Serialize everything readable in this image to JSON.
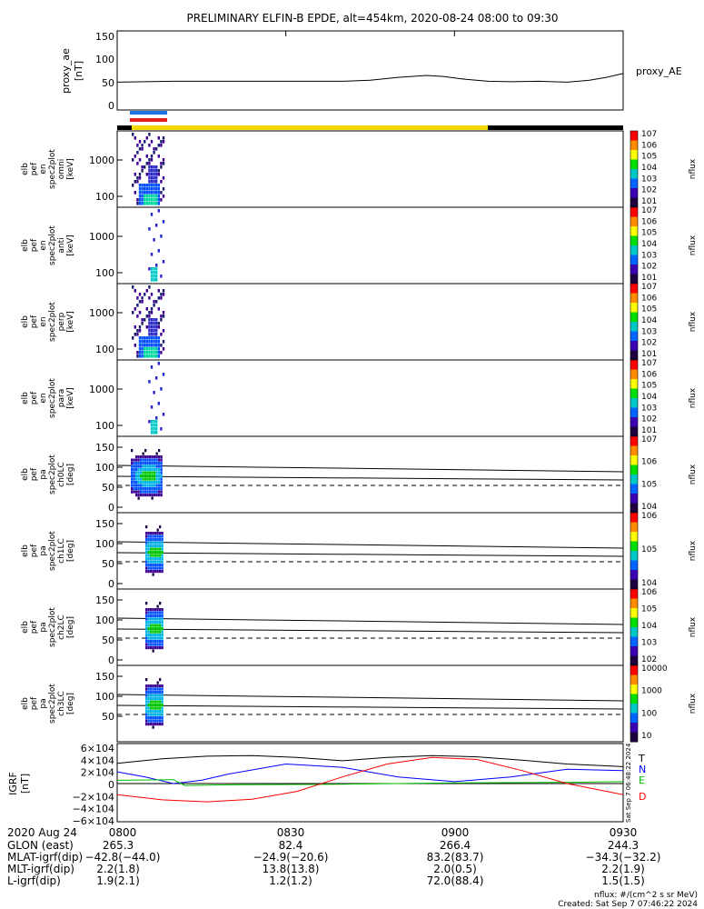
{
  "title": "PRELIMINARY ELFIN-B EPDE, alt=454km, 2020-08-24 08:00 to 09:30",
  "chart_data": {
    "type": "line",
    "panels": [
      {
        "name": "proxy_ae",
        "ylabel": [
          "proxy_ae",
          "[nT]"
        ],
        "yticks": [
          "150",
          "100",
          "50",
          "0"
        ],
        "ylim": [
          -10,
          155
        ],
        "legend": "proxy_AE",
        "series": [
          {
            "name": "proxy_AE",
            "x": [
              0,
              5,
              10,
              20,
              30,
              40,
              45,
              50,
              55,
              58,
              62,
              66,
              70,
              75,
              80,
              84,
              87,
              90
            ],
            "y": [
              48,
              49,
              50,
              50,
              50,
              50,
              52,
              58,
              62,
              60,
              54,
              50,
              49,
              50,
              48,
              52,
              58,
              66
            ]
          }
        ]
      },
      {
        "name": "en-omni",
        "ylabel": [
          "elb",
          "pef",
          "en",
          "spec2plot",
          "omni",
          "[keV]"
        ],
        "yticks": [
          "1000",
          "100"
        ],
        "colorbar": {
          "label": "nflux",
          "ticks": [
            "10^7",
            "10^6",
            "10^5",
            "10^4",
            "10^3",
            "10^2",
            "10^1"
          ]
        }
      },
      {
        "name": "en-anti",
        "ylabel": [
          "elb",
          "pef",
          "en",
          "spec2plot",
          "anti",
          "[keV]"
        ],
        "yticks": [
          "1000",
          "100"
        ],
        "colorbar": {
          "label": "nflux",
          "ticks": [
            "10^7",
            "10^6",
            "10^5",
            "10^4",
            "10^3",
            "10^2",
            "10^1"
          ]
        }
      },
      {
        "name": "en-perp",
        "ylabel": [
          "elb",
          "pef",
          "en",
          "spec2plot",
          "perp",
          "[keV]"
        ],
        "yticks": [
          "1000",
          "100"
        ],
        "colorbar": {
          "label": "nflux",
          "ticks": [
            "10^7",
            "10^6",
            "10^5",
            "10^4",
            "10^3",
            "10^2",
            "10^1"
          ]
        }
      },
      {
        "name": "en-para",
        "ylabel": [
          "elb",
          "pef",
          "en",
          "spec2plot",
          "para",
          "[keV]"
        ],
        "yticks": [
          "1000",
          "100"
        ],
        "colorbar": {
          "label": "nflux",
          "ticks": [
            "10^7",
            "10^6",
            "10^5",
            "10^4",
            "10^3",
            "10^2",
            "10^1"
          ]
        }
      },
      {
        "name": "pa-ch0",
        "ylabel": [
          "elb",
          "pef",
          "pa",
          "spec2plot",
          "ch0LC",
          "[deg]"
        ],
        "yticks": [
          "150",
          "100",
          "50",
          "0"
        ],
        "colorbar": {
          "label": "nflux",
          "ticks": [
            "10^7",
            "10^6",
            "10^5",
            "10^4"
          ]
        }
      },
      {
        "name": "pa-ch1",
        "ylabel": [
          "elb",
          "pef",
          "pa",
          "spec2plot",
          "ch1LC",
          "[deg]"
        ],
        "yticks": [
          "150",
          "100",
          "50",
          "0"
        ],
        "colorbar": {
          "label": "nflux",
          "ticks": [
            "10^6",
            "10^5",
            "10^4"
          ]
        }
      },
      {
        "name": "pa-ch2",
        "ylabel": [
          "elb",
          "pef",
          "pa",
          "spec2plot",
          "ch2LC",
          "[deg]"
        ],
        "yticks": [
          "150",
          "100",
          "50",
          "0"
        ],
        "colorbar": {
          "label": "nflux",
          "ticks": [
            "10^6",
            "10^5",
            "10^4",
            "10^3",
            "10^2"
          ]
        }
      },
      {
        "name": "pa-ch3",
        "ylabel": [
          "elb",
          "pef",
          "pa",
          "spec2plot",
          "ch3LC",
          "[deg]"
        ],
        "yticks": [
          "150",
          "100",
          "50"
        ],
        "colorbar": {
          "label": "nflux",
          "ticks": [
            "10000",
            "1000",
            "100",
            "10"
          ]
        }
      },
      {
        "name": "igrf",
        "ylabel": [
          "IGRF",
          "[nT]"
        ],
        "yticks": [
          "6×10^4",
          "4×10^4",
          "2×10^4",
          "0",
          "−2×10^4",
          "−4×10^4",
          "−6×10^4"
        ],
        "ylim": [
          -60000,
          60000
        ],
        "legend": [
          "T",
          "N",
          "E",
          "D"
        ],
        "series": [
          {
            "name": "T",
            "color": "#000000",
            "x": [
              0,
              8,
              16,
              24,
              32,
              40,
              48,
              56,
              64,
              72,
              80,
              90
            ],
            "y": [
              31000,
              38000,
              42000,
              43000,
              40000,
              35000,
              40000,
              43000,
              41000,
              36000,
              30000,
              26000
            ]
          },
          {
            "name": "N",
            "color": "#0000ff",
            "x": [
              0,
              5,
              10,
              15,
              20,
              30,
              40,
              50,
              60,
              70,
              80,
              90
            ],
            "y": [
              18000,
              10000,
              0,
              5000,
              15000,
              30000,
              25000,
              10000,
              3000,
              10000,
              22000,
              20000
            ]
          },
          {
            "name": "E",
            "color": "#00c000",
            "x": [
              0,
              10,
              12,
              20,
              40,
              60,
              80,
              90
            ],
            "y": [
              5000,
              6000,
              -3000,
              -2000,
              -1000,
              1000,
              2000,
              3000
            ]
          },
          {
            "name": "D",
            "color": "#ff0000",
            "x": [
              0,
              8,
              16,
              24,
              32,
              40,
              48,
              56,
              64,
              72,
              80,
              90
            ],
            "y": [
              -17000,
              -25000,
              -28000,
              -24000,
              -12000,
              10000,
              30000,
              40000,
              37000,
              20000,
              0,
              -17000
            ]
          }
        ]
      }
    ],
    "xaxis": {
      "ticks": [
        "0800",
        "0830",
        "0900",
        "0930"
      ],
      "range_minutes": [
        0,
        90
      ]
    },
    "ephemeris": {
      "labels": [
        "2020 Aug 24",
        "GLON (east)",
        "MLAT-igrf(dip)",
        "MLT-igrf(dip)",
        "L-igrf(dip)"
      ],
      "columns": [
        [
          "265.3",
          "−42.8(−44.0)",
          "2.2(1.8)",
          "1.9(2.1)"
        ],
        [
          "82.4",
          "−24.9(−20.6)",
          "13.8(13.8)",
          "1.2(1.2)"
        ],
        [
          "266.4",
          "83.2(83.7)",
          "2.0(0.5)",
          "72.0(88.4)"
        ],
        [
          "244.3",
          "−34.3(−32.2)",
          "2.2(1.9)",
          "1.5(1.5)"
        ]
      ]
    },
    "footer": {
      "units": "nflux: #/(cm^2 s sr MeV)",
      "created": "Created: Sat Sep  7 07:46:22 2024"
    },
    "side_stamp": "Sat Sep  7 06:48:22 2024"
  },
  "colors": {
    "status_bar_yellow": "#f5d800",
    "status_bar_black": "#000000",
    "blue_marker": "#1e73e8",
    "red_marker": "#e61e1e"
  }
}
